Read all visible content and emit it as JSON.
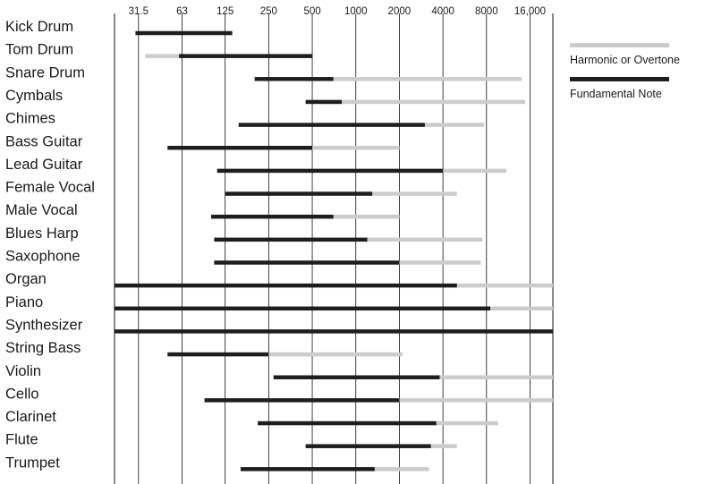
{
  "chart_data": {
    "type": "bar",
    "title": "",
    "xlabel": "",
    "ylabel": "",
    "x_scale": "log2",
    "x_range": [
      21.5,
      23000
    ],
    "x_ticks": [
      "31.5",
      "63",
      "125",
      "250",
      "500",
      "1000",
      "2000",
      "4000",
      "8000",
      "16,000"
    ],
    "x_tick_values": [
      31.5,
      63,
      125,
      250,
      500,
      1000,
      2000,
      4000,
      8000,
      16000
    ],
    "grid": true,
    "legend_position": "right",
    "colors": {
      "fundamental": "#1e1e1e",
      "harmonic": "#cccccc",
      "grid": "#111111"
    },
    "series": [
      {
        "name": "Harmonic or Overtone",
        "key": "harmonic"
      },
      {
        "name": "Fundamental Note",
        "key": "fundamental"
      }
    ],
    "categories": [
      "Kick Drum",
      "Tom Drum",
      "Snare Drum",
      "Cymbals",
      "Chimes",
      "Bass Guitar",
      "Lead Guitar",
      "Female Vocal",
      "Male Vocal",
      "Blues Harp",
      "Saxophone",
      "Organ",
      "Piano",
      "Synthesizer",
      "String Bass",
      "Violin",
      "Cello",
      "Clarinet",
      "Flute",
      "Trumpet"
    ],
    "ranges": [
      {
        "instrument": "Kick Drum",
        "fundamental": [
          30,
          140
        ],
        "harmonic": null
      },
      {
        "instrument": "Tom Drum",
        "fundamental": [
          60,
          500
        ],
        "harmonic": [
          35,
          60
        ]
      },
      {
        "instrument": "Snare Drum",
        "fundamental": [
          200,
          700
        ],
        "harmonic": [
          700,
          14000
        ]
      },
      {
        "instrument": "Cymbals",
        "fundamental": [
          450,
          800
        ],
        "harmonic": [
          800,
          14800
        ]
      },
      {
        "instrument": "Chimes",
        "fundamental": [
          155,
          3000
        ],
        "harmonic": [
          3000,
          7700
        ]
      },
      {
        "instrument": "Bass Guitar",
        "fundamental": [
          50,
          500
        ],
        "harmonic": [
          500,
          2000
        ]
      },
      {
        "instrument": "Lead Guitar",
        "fundamental": [
          110,
          4000
        ],
        "harmonic": [
          4000,
          11000
        ]
      },
      {
        "instrument": "Female Vocal",
        "fundamental": [
          125,
          1300
        ],
        "harmonic": [
          1300,
          5000
        ]
      },
      {
        "instrument": "Male Vocal",
        "fundamental": [
          100,
          700
        ],
        "harmonic": [
          700,
          2000
        ]
      },
      {
        "instrument": "Blues Harp",
        "fundamental": [
          105,
          1200
        ],
        "harmonic": [
          1200,
          7500
        ]
      },
      {
        "instrument": "Saxophone",
        "fundamental": [
          105,
          2000
        ],
        "harmonic": [
          2000,
          7300
        ]
      },
      {
        "instrument": "Organ",
        "fundamental": [
          21.5,
          5000
        ],
        "harmonic": [
          5000,
          23000
        ]
      },
      {
        "instrument": "Piano",
        "fundamental": [
          21.5,
          8500
        ],
        "harmonic": [
          8500,
          23000
        ]
      },
      {
        "instrument": "Synthesizer",
        "fundamental": [
          21.5,
          23000
        ],
        "harmonic": null
      },
      {
        "instrument": "String Bass",
        "fundamental": [
          50,
          250
        ],
        "harmonic": [
          250,
          2100
        ]
      },
      {
        "instrument": "Violin",
        "fundamental": [
          270,
          3800
        ],
        "harmonic": [
          3800,
          23000
        ]
      },
      {
        "instrument": "Cello",
        "fundamental": [
          90,
          2000
        ],
        "harmonic": [
          2000,
          23000
        ]
      },
      {
        "instrument": "Clarinet",
        "fundamental": [
          210,
          3600
        ],
        "harmonic": [
          3600,
          9600
        ]
      },
      {
        "instrument": "Flute",
        "fundamental": [
          450,
          3300
        ],
        "harmonic": [
          3300,
          5000
        ]
      },
      {
        "instrument": "Trumpet",
        "fundamental": [
          160,
          1350
        ],
        "harmonic": [
          1350,
          3200
        ]
      }
    ]
  }
}
